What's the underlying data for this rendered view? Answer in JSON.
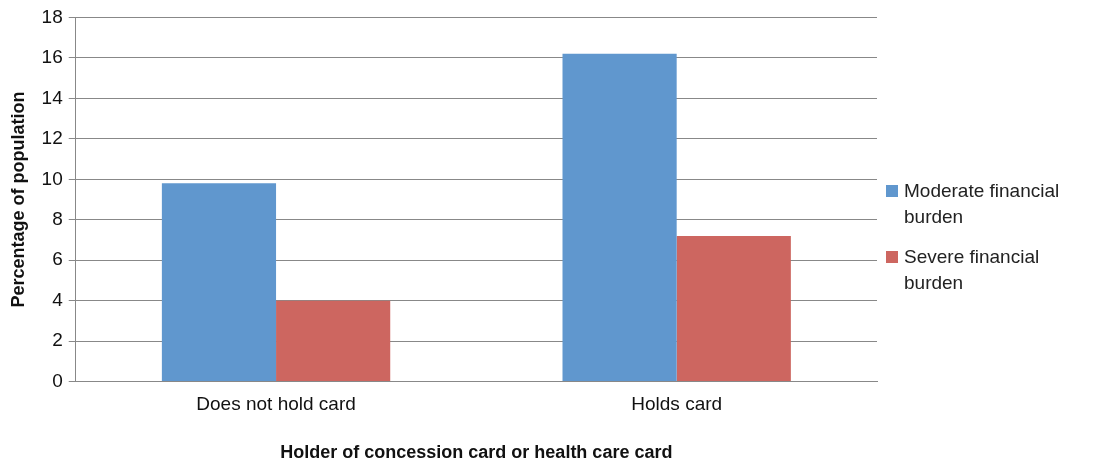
{
  "chart_data": {
    "type": "bar",
    "xlabel": "Holder of concession card or health care card",
    "ylabel": "Percentage of population",
    "categories": [
      "Does not hold card",
      "Holds card"
    ],
    "series": [
      {
        "name": "Moderate financial burden",
        "color": "#6097ce",
        "values": [
          9.8,
          16.2
        ]
      },
      {
        "name": "Severe financial burden",
        "color": "#cd6660",
        "values": [
          4.0,
          7.2
        ]
      }
    ],
    "ylim": [
      0,
      18
    ],
    "yticks": [
      0,
      2,
      4,
      6,
      8,
      10,
      12,
      14,
      16,
      18
    ],
    "grid": "y",
    "legend": "right"
  }
}
